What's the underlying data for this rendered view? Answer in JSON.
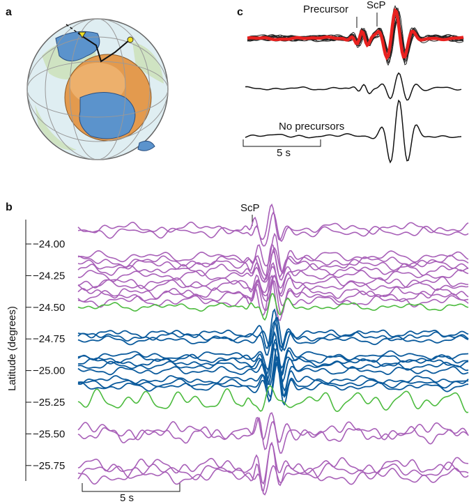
{
  "panels": {
    "a": {
      "label": "a"
    },
    "b": {
      "label": "b",
      "scp_label": "ScP",
      "axis_title": "Latitude (degrees)",
      "ticks": [
        "−24.00",
        "−24.25",
        "−24.50",
        "−24.75",
        "−25.00",
        "−25.25",
        "−25.50",
        "−25.75"
      ],
      "scale_bar": "5 s"
    },
    "c": {
      "label": "c",
      "precursor_label": "Precursor",
      "scp_label": "ScP",
      "no_precursors_label": "No precursors",
      "scale_bar": "5 s"
    }
  }
}
